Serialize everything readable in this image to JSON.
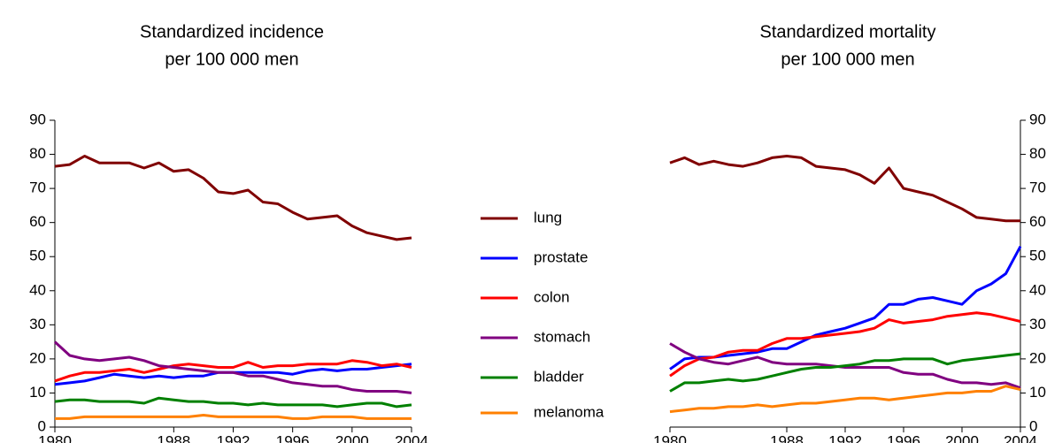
{
  "chart_data": [
    {
      "type": "line",
      "title": [
        "Standardized incidence",
        "per 100 000 men"
      ],
      "x": [
        1980,
        1981,
        1982,
        1983,
        1984,
        1985,
        1986,
        1987,
        1988,
        1989,
        1990,
        1991,
        1992,
        1993,
        1994,
        1995,
        1996,
        1997,
        1998,
        1999,
        2000,
        2001,
        2002,
        2003,
        2004
      ],
      "xlim": [
        1980,
        2004
      ],
      "xticks": [
        1980,
        1988,
        1992,
        1996,
        2000,
        2004
      ],
      "ylim": [
        0,
        90
      ],
      "yticks": [
        0,
        10,
        20,
        30,
        40,
        50,
        60,
        70,
        80,
        90
      ],
      "y_axis_side": "left",
      "series": [
        {
          "name": "lung",
          "color": "#800000",
          "values": [
            76.5,
            77,
            79.5,
            77.5,
            77.5,
            77.5,
            76,
            77.5,
            75,
            75.5,
            73,
            69,
            68.5,
            69.5,
            66,
            65.5,
            63,
            61,
            61.5,
            62,
            59,
            57,
            56,
            55,
            55.5
          ]
        },
        {
          "name": "prostate",
          "color": "#0000ff",
          "values": [
            12.5,
            13,
            13.5,
            14.5,
            15.5,
            15,
            14.5,
            15,
            14.5,
            15,
            15,
            16,
            16,
            16,
            16,
            16,
            15.5,
            16.5,
            17,
            16.5,
            17,
            17,
            17.5,
            18,
            18.5
          ]
        },
        {
          "name": "colon",
          "color": "#ff0000",
          "values": [
            13.5,
            15,
            16,
            16,
            16.5,
            17,
            16,
            17,
            18,
            18.5,
            18,
            17.5,
            17.5,
            19,
            17.5,
            18,
            18,
            18.5,
            18.5,
            18.5,
            19.5,
            19,
            18,
            18.5,
            17.5
          ]
        },
        {
          "name": "stomach",
          "color": "#800080",
          "values": [
            25,
            21,
            20,
            19.5,
            20,
            20.5,
            19.5,
            18,
            17.5,
            17,
            16.5,
            16,
            16,
            15,
            15,
            14,
            13,
            12.5,
            12,
            12,
            11,
            10.5,
            10.5,
            10.5,
            10
          ]
        },
        {
          "name": "bladder",
          "color": "#008000",
          "values": [
            7.5,
            8,
            8,
            7.5,
            7.5,
            7.5,
            7,
            8.5,
            8,
            7.5,
            7.5,
            7,
            7,
            6.5,
            7,
            6.5,
            6.5,
            6.5,
            6.5,
            6,
            6.5,
            7,
            7,
            6,
            6.5
          ]
        },
        {
          "name": "melanoma",
          "color": "#ff8000",
          "values": [
            2.5,
            2.5,
            3,
            3,
            3,
            3,
            3,
            3,
            3,
            3,
            3.5,
            3,
            3,
            3,
            3,
            3,
            2.5,
            2.5,
            3,
            3,
            3,
            2.5,
            2.5,
            2.5,
            2.5
          ]
        }
      ]
    },
    {
      "type": "line",
      "title": [
        "Standardized mortality",
        "per 100 000 men"
      ],
      "x": [
        1980,
        1981,
        1982,
        1983,
        1984,
        1985,
        1986,
        1987,
        1988,
        1989,
        1990,
        1991,
        1992,
        1993,
        1994,
        1995,
        1996,
        1997,
        1998,
        1999,
        2000,
        2001,
        2002,
        2003,
        2004
      ],
      "xlim": [
        1980,
        2004
      ],
      "xticks": [
        1980,
        1988,
        1992,
        1996,
        2000,
        2004
      ],
      "ylim": [
        0,
        90
      ],
      "yticks": [
        0,
        10,
        20,
        30,
        40,
        50,
        60,
        70,
        80,
        90
      ],
      "y_axis_side": "right",
      "series": [
        {
          "color": "#800000",
          "values": [
            77.5,
            79,
            77,
            78,
            77,
            76.5,
            77.5,
            79,
            79.5,
            79,
            76.5,
            76,
            75.5,
            74,
            71.5,
            76,
            70,
            69,
            68,
            66,
            64,
            61.5,
            61,
            60.5,
            60.5
          ]
        },
        {
          "color": "#0000ff",
          "values": [
            17,
            20,
            20.5,
            20.5,
            21,
            21.5,
            22,
            23,
            23,
            25,
            27,
            28,
            29,
            30.5,
            32,
            36,
            36,
            37.5,
            38,
            37,
            36,
            40,
            42,
            45,
            53
          ]
        },
        {
          "color": "#ff0000",
          "values": [
            15,
            18,
            20,
            20.5,
            22,
            22.5,
            22.5,
            24.5,
            26,
            26,
            26.5,
            27,
            27.5,
            28,
            29,
            31.5,
            30.5,
            31,
            31.5,
            32.5,
            33,
            33.5,
            33,
            32,
            31
          ]
        },
        {
          "color": "#800080",
          "values": [
            24.5,
            22,
            20,
            19,
            18.5,
            19.5,
            20.5,
            19,
            18.5,
            18.5,
            18.5,
            18,
            17.5,
            17.5,
            17.5,
            17.5,
            16,
            15.5,
            15.5,
            14,
            13,
            13,
            12.5,
            13,
            11.5
          ]
        },
        {
          "color": "#008000",
          "values": [
            10.5,
            13,
            13,
            13.5,
            14,
            13.5,
            14,
            15,
            16,
            17,
            17.5,
            17.5,
            18,
            18.5,
            19.5,
            19.5,
            20,
            20,
            20,
            18.5,
            19.5,
            20,
            20.5,
            21,
            21.5
          ]
        },
        {
          "color": "#ff8000",
          "values": [
            4.5,
            5,
            5.5,
            5.5,
            6,
            6,
            6.5,
            6,
            6.5,
            7,
            7,
            7.5,
            8,
            8.5,
            8.5,
            8,
            8.5,
            9,
            9.5,
            10,
            10,
            10.5,
            10.5,
            12,
            11
          ]
        }
      ]
    }
  ]
}
